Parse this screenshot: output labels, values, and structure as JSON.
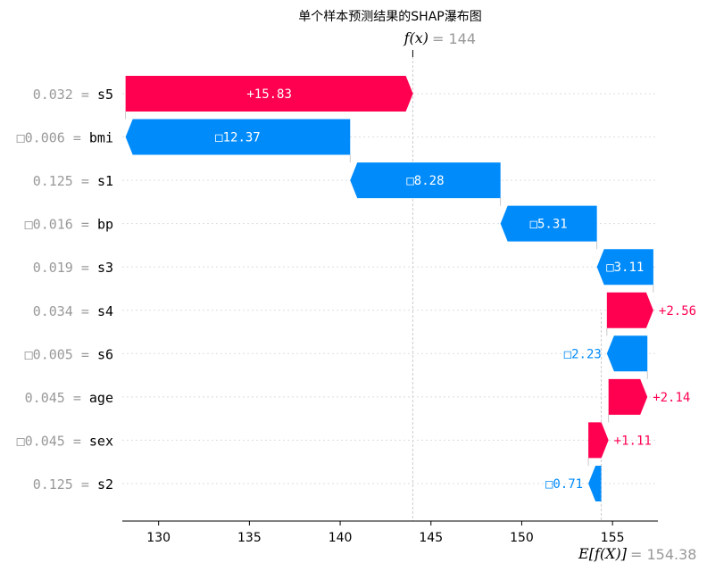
{
  "chart_data": {
    "type": "waterfall",
    "title": "单个样本预测结果的SHAP瀑布图",
    "fx": {
      "label": "f(x)",
      "value_text": "= 144",
      "value": 144.0
    },
    "ex": {
      "label": "E[f(X)]",
      "value_text": "= 154.38",
      "value": 154.38
    },
    "xlim": [
      128,
      157.5
    ],
    "xticks": [
      130,
      135,
      140,
      145,
      150,
      155
    ],
    "xtick_labels": [
      "130",
      "135",
      "140",
      "145",
      "150",
      "155"
    ],
    "features": [
      {
        "name": "s5",
        "value_text": "0.032 =",
        "shap": 15.83,
        "label": "+15.83"
      },
      {
        "name": "bmi",
        "value_text": "□0.006 =",
        "shap": -12.37,
        "label": "□12.37"
      },
      {
        "name": "s1",
        "value_text": "0.125 =",
        "shap": -8.28,
        "label": "□8.28"
      },
      {
        "name": "bp",
        "value_text": "□0.016 =",
        "shap": -5.31,
        "label": "□5.31"
      },
      {
        "name": "s3",
        "value_text": "0.019 =",
        "shap": -3.11,
        "label": "□3.11"
      },
      {
        "name": "s4",
        "value_text": "0.034 =",
        "shap": 2.56,
        "label": "+2.56"
      },
      {
        "name": "s6",
        "value_text": "□0.005 =",
        "shap": -2.23,
        "label": "□2.23"
      },
      {
        "name": "age",
        "value_text": "0.045 =",
        "shap": 2.14,
        "label": "+2.14"
      },
      {
        "name": "sex",
        "value_text": "□0.045 =",
        "shap": 1.11,
        "label": "+1.11"
      },
      {
        "name": "s2",
        "value_text": "0.125 =",
        "shap": -0.71,
        "label": "□0.71"
      }
    ],
    "colors": {
      "positive": "#ff0051",
      "negative": "#008bfb",
      "axis": "#000000",
      "grid": "#cccccc"
    }
  }
}
